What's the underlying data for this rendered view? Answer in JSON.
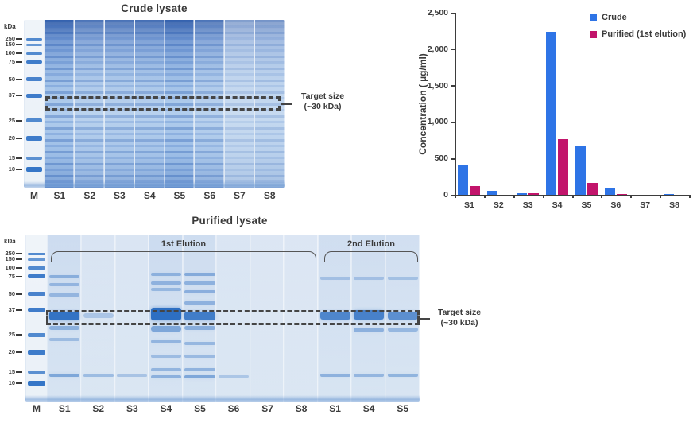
{
  "crude_gel": {
    "title": "Crude lysate",
    "kda_unit": "kDa",
    "ladder_labels": [
      "250",
      "150",
      "100",
      "75",
      "50",
      "37",
      "25",
      "20",
      "15",
      "10"
    ],
    "ladder_positions": [
      0.115,
      0.148,
      0.2,
      0.25,
      0.355,
      0.45,
      0.6,
      0.705,
      0.825,
      0.89
    ],
    "marker_label": "M",
    "lanes": [
      {
        "label": "S1",
        "intensity": 1.0
      },
      {
        "label": "S2",
        "intensity": 0.82
      },
      {
        "label": "S3",
        "intensity": 0.84
      },
      {
        "label": "S4",
        "intensity": 0.88
      },
      {
        "label": "S5",
        "intensity": 1.0
      },
      {
        "label": "S6",
        "intensity": 0.82
      },
      {
        "label": "S7",
        "intensity": 0.5
      },
      {
        "label": "S8",
        "intensity": 0.58
      }
    ],
    "target_line1": "Target size",
    "target_line2": "(~30 kDa)"
  },
  "purified_gel": {
    "title": "Purified lysate",
    "kda_unit": "kDa",
    "ladder_labels": [
      "250",
      "150",
      "100",
      "75",
      "50",
      "37",
      "25",
      "20",
      "15",
      "10"
    ],
    "ladder_positions": [
      0.115,
      0.148,
      0.2,
      0.25,
      0.355,
      0.45,
      0.6,
      0.705,
      0.825,
      0.89
    ],
    "marker_label": "M",
    "groups": [
      {
        "label": "1st Elution",
        "lane_count": 8
      },
      {
        "label": "2nd Elution",
        "lane_count": 3
      }
    ],
    "lanes": [
      {
        "label": "S1",
        "bands": [
          [
            0.25,
            0.3,
            4
          ],
          [
            0.3,
            0.22,
            4
          ],
          [
            0.36,
            0.22,
            4
          ],
          [
            0.487,
            0.95,
            11
          ],
          [
            0.56,
            0.3,
            5
          ],
          [
            0.63,
            0.18,
            4
          ],
          [
            0.845,
            0.4,
            4
          ]
        ]
      },
      {
        "label": "S2",
        "bands": [
          [
            0.487,
            0.1,
            6
          ],
          [
            0.845,
            0.2,
            3
          ]
        ]
      },
      {
        "label": "S3",
        "bands": [
          [
            0.845,
            0.12,
            3
          ]
        ]
      },
      {
        "label": "S4",
        "bands": [
          [
            0.24,
            0.28,
            4
          ],
          [
            0.29,
            0.26,
            4
          ],
          [
            0.33,
            0.2,
            4
          ],
          [
            0.475,
            1.0,
            16
          ],
          [
            0.565,
            0.4,
            7
          ],
          [
            0.64,
            0.25,
            5
          ],
          [
            0.73,
            0.18,
            4
          ],
          [
            0.81,
            0.25,
            4
          ],
          [
            0.85,
            0.3,
            4
          ]
        ]
      },
      {
        "label": "S5",
        "bands": [
          [
            0.24,
            0.35,
            4
          ],
          [
            0.29,
            0.28,
            4
          ],
          [
            0.345,
            0.3,
            4
          ],
          [
            0.41,
            0.28,
            4
          ],
          [
            0.487,
            0.85,
            11
          ],
          [
            0.56,
            0.33,
            5
          ],
          [
            0.65,
            0.22,
            4
          ],
          [
            0.73,
            0.2,
            4
          ],
          [
            0.81,
            0.28,
            4
          ],
          [
            0.85,
            0.4,
            4
          ]
        ]
      },
      {
        "label": "S6",
        "bands": [
          [
            0.85,
            0.1,
            3
          ]
        ]
      },
      {
        "label": "S7",
        "bands": []
      },
      {
        "label": "S8",
        "bands": []
      },
      {
        "label": "S1",
        "bands": [
          [
            0.26,
            0.12,
            4
          ],
          [
            0.487,
            0.75,
            10
          ],
          [
            0.845,
            0.3,
            4
          ]
        ]
      },
      {
        "label": "S4",
        "bands": [
          [
            0.26,
            0.12,
            4
          ],
          [
            0.48,
            0.8,
            12
          ],
          [
            0.57,
            0.3,
            6
          ],
          [
            0.845,
            0.25,
            4
          ]
        ]
      },
      {
        "label": "S5",
        "bands": [
          [
            0.26,
            0.12,
            4
          ],
          [
            0.487,
            0.65,
            10
          ],
          [
            0.57,
            0.22,
            5
          ],
          [
            0.845,
            0.28,
            4
          ]
        ]
      }
    ],
    "target_line1": "Target size",
    "target_line2": "(~30 kDa)"
  },
  "chart_data": {
    "type": "bar",
    "title": "",
    "categories": [
      "S1",
      "S2",
      "S3",
      "S4",
      "S5",
      "S6",
      "S7",
      "S8"
    ],
    "series": [
      {
        "name": "Crude",
        "color": "#2E74E6",
        "values": [
          400,
          55,
          20,
          2240,
          670,
          90,
          0,
          15
        ]
      },
      {
        "name": "Purified (1st elution)",
        "color": "#C2146B",
        "values": [
          120,
          0,
          20,
          760,
          160,
          8,
          0,
          0
        ]
      }
    ],
    "ylabel": "Concentration ( µg/ml)",
    "ylim": [
      0,
      2500
    ],
    "ytick_values": [
      0,
      500,
      1000,
      1500,
      2000,
      2500
    ],
    "ytick_labels": [
      "0",
      "500",
      "1,000",
      "1,500",
      "2,000",
      "2,500"
    ],
    "grid": false,
    "legend_position": "top-right"
  },
  "colors": {
    "axis": "#3d3d3d",
    "text": "#3a3a3a",
    "dash_box": "#454545",
    "gel_band_blue": "#2b6fc4"
  }
}
